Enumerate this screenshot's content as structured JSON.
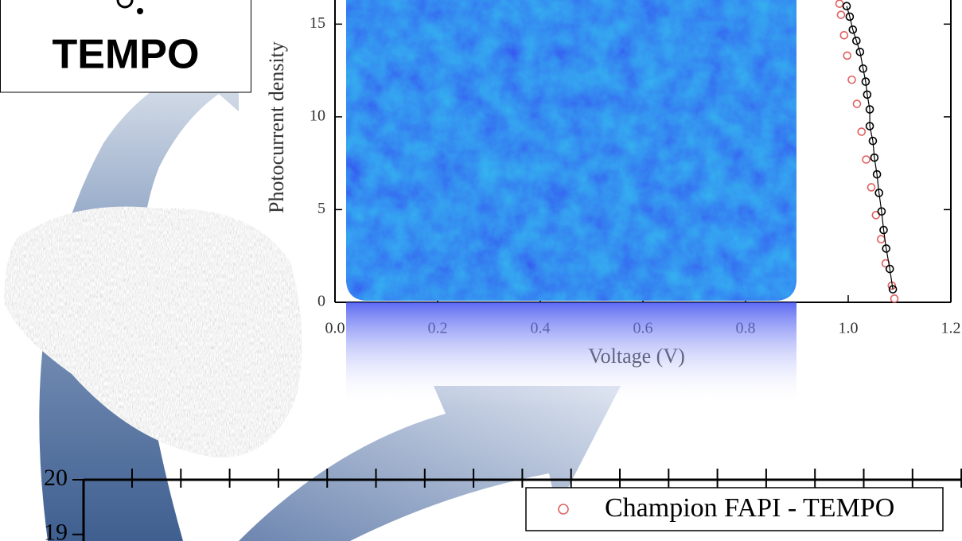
{
  "molecule_label": "TEMPO",
  "chart_data": [
    {
      "type": "scatter",
      "x_label": "Voltage (V)",
      "y_label": "Photocurrent density",
      "xlim": [
        0,
        1.2
      ],
      "xticks": [
        {
          "value": 0,
          "label": "0.0"
        },
        0.2,
        0.4,
        0.6,
        0.8,
        {
          "value": 1,
          "label": "1.0"
        },
        1.2
      ],
      "ylim": [
        0,
        16.3
      ],
      "yticks": [
        0,
        5,
        10,
        15
      ],
      "series": [
        {
          "color": "#e06060",
          "line": false,
          "x": [
            0.983,
            0.986,
            0.992,
            0.998,
            1.007,
            1.017,
            1.026,
            1.035,
            1.045,
            1.054,
            1.064,
            1.073,
            1.085,
            1.09
          ],
          "values": [
            16.1,
            15.5,
            14.4,
            13.3,
            12.0,
            10.7,
            9.2,
            7.7,
            6.2,
            4.7,
            3.4,
            2.1,
            0.9,
            0.2
          ]
        },
        {
          "color": "#000000",
          "line": true,
          "x": [
            0.997,
            1.003,
            1.009,
            1.016,
            1.023,
            1.029,
            1.034,
            1.037,
            1.042,
            1.042,
            1.048,
            1.051,
            1.056,
            1.06,
            1.065,
            1.069,
            1.074,
            1.081,
            1.087
          ],
          "values": [
            15.97,
            15.4,
            14.7,
            14.1,
            13.5,
            12.6,
            11.9,
            11.2,
            10.4,
            9.5,
            8.7,
            7.8,
            6.9,
            5.9,
            4.9,
            3.9,
            2.9,
            1.8,
            0.7
          ]
        }
      ]
    },
    {
      "type": "scatter",
      "ylim": [
        18.88,
        20
      ],
      "yticks": [
        19,
        20
      ],
      "legend": "top-right",
      "series": [
        {
          "name": "Champion FAPI - TEMPO",
          "color": "#e06060",
          "x": [],
          "values": []
        }
      ]
    }
  ]
}
